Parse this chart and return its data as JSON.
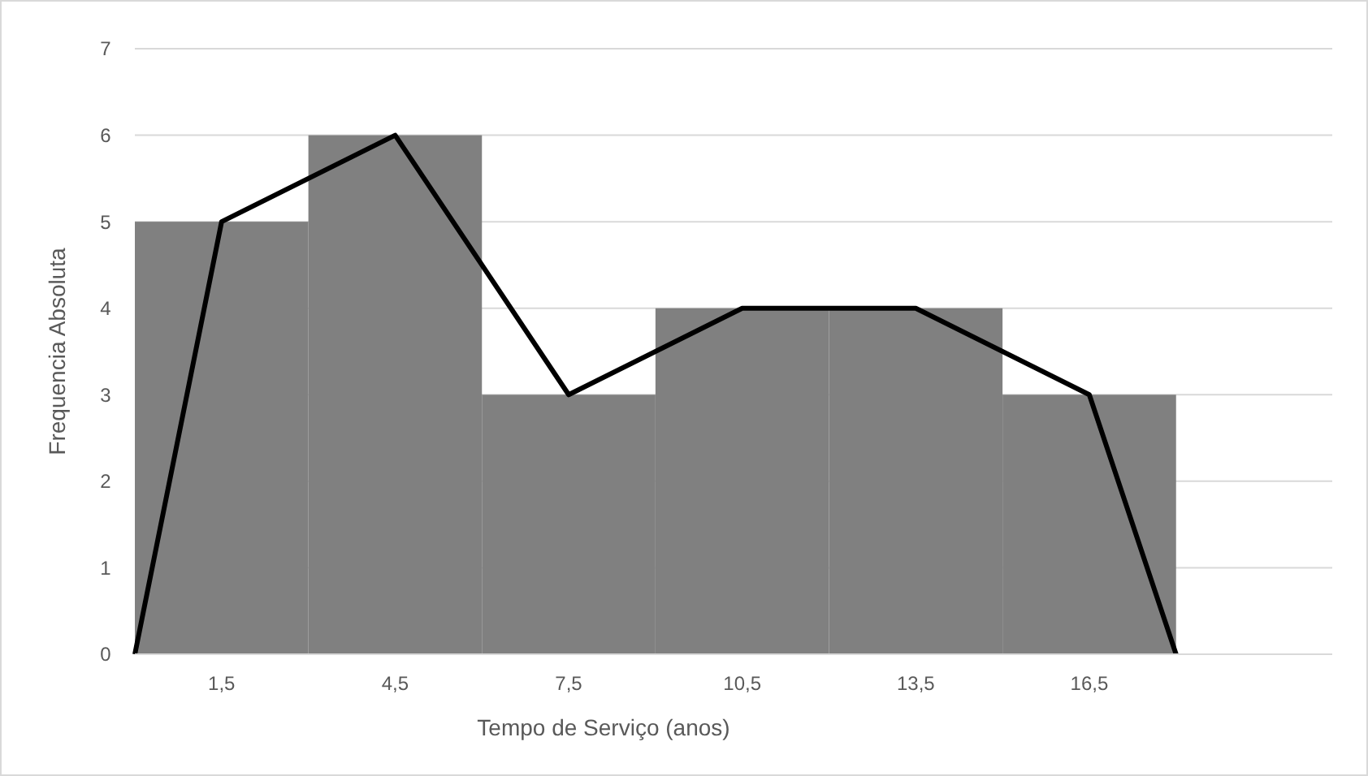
{
  "chart_data": {
    "type": "histogram",
    "xlabel": "Tempo de Serviço (anos)",
    "ylabel": "Frequencia Absoluta",
    "series": [
      {
        "bins": [
          0,
          3,
          6,
          9,
          12,
          15,
          18
        ],
        "values": [
          5,
          6,
          3,
          4,
          4,
          3
        ],
        "color": "#808080"
      },
      {
        "type": "line",
        "x": [
          0,
          1.5,
          4.5,
          7.5,
          10.5,
          13.5,
          16.5,
          18
        ],
        "values": [
          0,
          5,
          6,
          3,
          4,
          4,
          3,
          0
        ],
        "color": "#000000"
      }
    ],
    "xlim": [
      0,
      20.7
    ],
    "xticks": [
      {
        "value": 1.5,
        "label": "1,5"
      },
      {
        "value": 4.5,
        "label": "4,5"
      },
      {
        "value": 7.5,
        "label": "7,5"
      },
      {
        "value": 10.5,
        "label": "10,5"
      },
      {
        "value": 13.5,
        "label": "13,5"
      },
      {
        "value": 16.5,
        "label": "16,5"
      }
    ],
    "ylim": [
      0,
      7
    ],
    "yticks": [
      0,
      1,
      2,
      3,
      4,
      5,
      6,
      7
    ],
    "grid": "y",
    "marker": "none",
    "line_style": "solid"
  }
}
